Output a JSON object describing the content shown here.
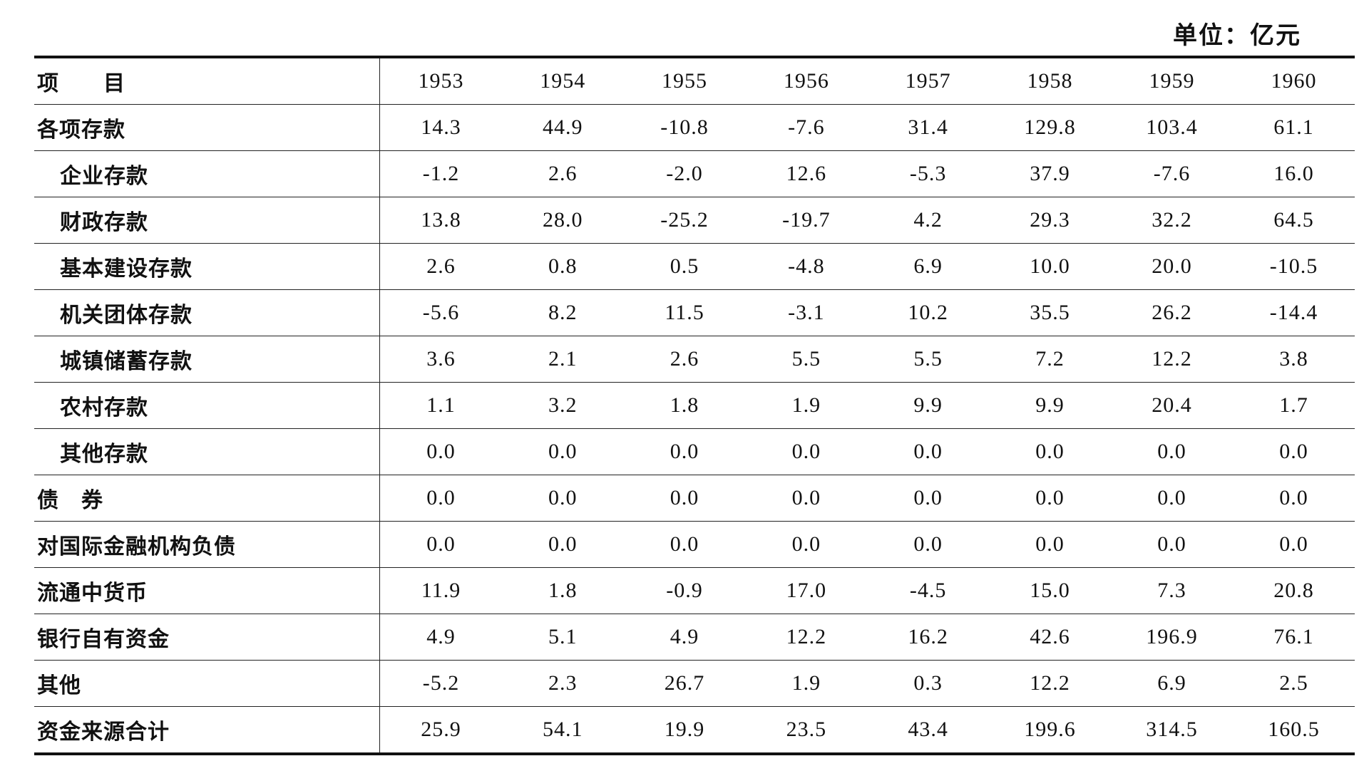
{
  "unit": "单位：亿元",
  "table": {
    "header": [
      "项　　目",
      "1953",
      "1954",
      "1955",
      "1956",
      "1957",
      "1958",
      "1959",
      "1960"
    ],
    "rows": [
      [
        "各项存款",
        "14.3",
        "44.9",
        "-10.8",
        "-7.6",
        "31.4",
        "129.8",
        "103.4",
        "61.1"
      ],
      [
        "企业存款",
        "-1.2",
        "2.6",
        "-2.0",
        "12.6",
        "-5.3",
        "37.9",
        "-7.6",
        "16.0"
      ],
      [
        "财政存款",
        "13.8",
        "28.0",
        "-25.2",
        "-19.7",
        "4.2",
        "29.3",
        "32.2",
        "64.5"
      ],
      [
        "基本建设存款",
        "2.6",
        "0.8",
        "0.5",
        "-4.8",
        "6.9",
        "10.0",
        "20.0",
        "-10.5"
      ],
      [
        "机关团体存款",
        "-5.6",
        "8.2",
        "11.5",
        "-3.1",
        "10.2",
        "35.5",
        "26.2",
        "-14.4"
      ],
      [
        "城镇储蓄存款",
        "3.6",
        "2.1",
        "2.6",
        "5.5",
        "5.5",
        "7.2",
        "12.2",
        "3.8"
      ],
      [
        "农村存款",
        "1.1",
        "3.2",
        "1.8",
        "1.9",
        "9.9",
        "9.9",
        "20.4",
        "1.7"
      ],
      [
        "其他存款",
        "0.0",
        "0.0",
        "0.0",
        "0.0",
        "0.0",
        "0.0",
        "0.0",
        "0.0"
      ],
      [
        "债　券",
        "0.0",
        "0.0",
        "0.0",
        "0.0",
        "0.0",
        "0.0",
        "0.0",
        "0.0"
      ],
      [
        "对国际金融机构负债",
        "0.0",
        "0.0",
        "0.0",
        "0.0",
        "0.0",
        "0.0",
        "0.0",
        "0.0"
      ],
      [
        "流通中货币",
        "11.9",
        "1.8",
        "-0.9",
        "17.0",
        "-4.5",
        "15.0",
        "7.3",
        "20.8"
      ],
      [
        "银行自有资金",
        "4.9",
        "5.1",
        "4.9",
        "12.2",
        "16.2",
        "42.6",
        "196.9",
        "76.1"
      ],
      [
        "其他",
        "-5.2",
        "2.3",
        "26.7",
        "1.9",
        "0.3",
        "12.2",
        "6.9",
        "2.5"
      ],
      [
        "资金来源合计",
        "25.9",
        "54.1",
        "19.9",
        "23.5",
        "43.4",
        "199.6",
        "314.5",
        "160.5"
      ]
    ]
  }
}
